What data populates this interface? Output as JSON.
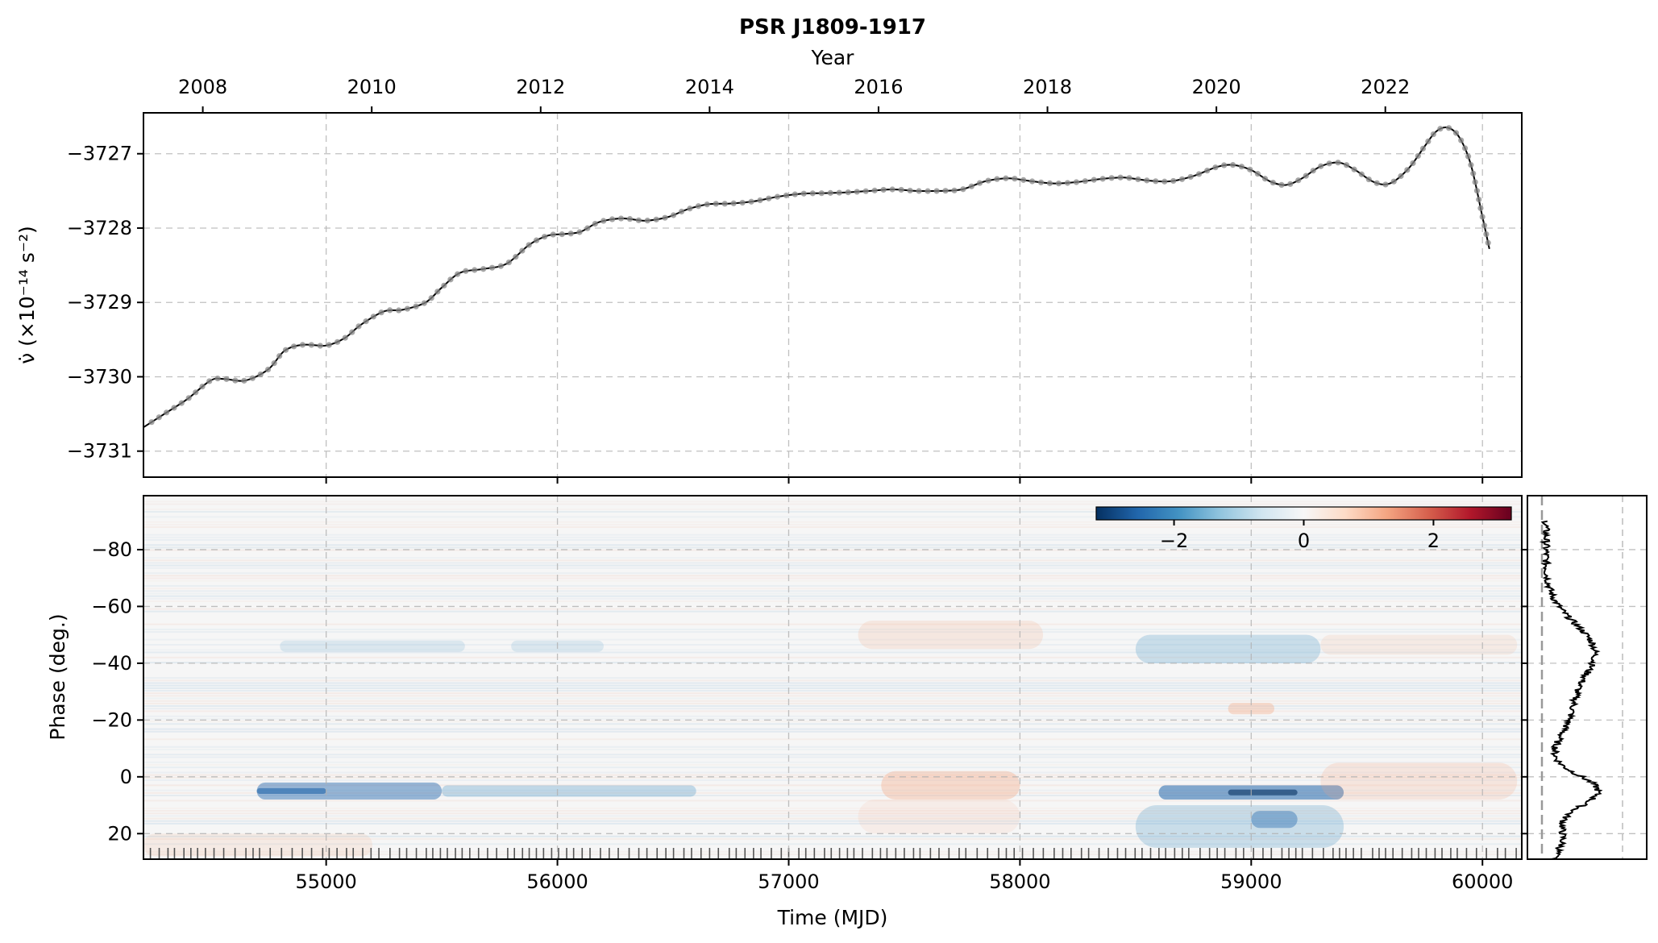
{
  "chart_data": [
    {
      "type": "line",
      "title": "PSR J1809-1917",
      "top_axis_label": "Year",
      "top_ticks": [
        "2008",
        "2010",
        "2012",
        "2014",
        "2016",
        "2018",
        "2020",
        "2022"
      ],
      "top_tick_years": [
        2008,
        2010,
        2012,
        2014,
        2016,
        2018,
        2020,
        2022
      ],
      "ylabel": "ν̇ (×10⁻¹⁴ s⁻²)",
      "yticks": [
        -3727,
        -3728,
        -3729,
        -3730,
        -3731
      ],
      "ytick_labels": [
        "−3727",
        "−3728",
        "−3729",
        "−3730",
        "−3731"
      ],
      "xlim": [
        54210,
        60170
      ],
      "ylim": [
        -3731.35,
        -3726.45
      ],
      "grid": true,
      "series": [
        {
          "line_color": "#000000",
          "marker_color": "#888888",
          "x": [
            54210,
            54300,
            54400,
            54500,
            54560,
            54650,
            54750,
            54820,
            54900,
            55000,
            55080,
            55150,
            55250,
            55330,
            55430,
            55500,
            55580,
            55680,
            55780,
            55880,
            55960,
            56030,
            56100,
            56180,
            56280,
            56380,
            56480,
            56560,
            56650,
            56750,
            56850,
            56950,
            57050,
            57150,
            57250,
            57350,
            57450,
            57550,
            57650,
            57750,
            57850,
            57950,
            58050,
            58150,
            58250,
            58350,
            58450,
            58550,
            58650,
            58750,
            58850,
            58920,
            59000,
            59080,
            59150,
            59220,
            59300,
            59380,
            59450,
            59530,
            59600,
            59680,
            59750,
            59800,
            59850,
            59900,
            59950,
            60000,
            60030
          ],
          "y": [
            -3730.68,
            -3730.5,
            -3730.3,
            -3730.05,
            -3730.03,
            -3730.05,
            -3729.9,
            -3729.65,
            -3729.57,
            -3729.58,
            -3729.48,
            -3729.3,
            -3729.12,
            -3729.1,
            -3729.0,
            -3728.8,
            -3728.6,
            -3728.55,
            -3728.48,
            -3728.22,
            -3728.1,
            -3728.08,
            -3728.05,
            -3727.92,
            -3727.87,
            -3727.9,
            -3727.85,
            -3727.75,
            -3727.68,
            -3727.67,
            -3727.64,
            -3727.58,
            -3727.54,
            -3727.53,
            -3727.52,
            -3727.5,
            -3727.48,
            -3727.5,
            -3727.5,
            -3727.48,
            -3727.37,
            -3727.33,
            -3727.37,
            -3727.4,
            -3727.38,
            -3727.34,
            -3727.32,
            -3727.36,
            -3727.37,
            -3727.3,
            -3727.18,
            -3727.15,
            -3727.22,
            -3727.37,
            -3727.42,
            -3727.33,
            -3727.17,
            -3727.12,
            -3727.22,
            -3727.38,
            -3727.4,
            -3727.2,
            -3726.9,
            -3726.7,
            -3726.65,
            -3726.78,
            -3727.15,
            -3727.85,
            -3728.28
          ]
        }
      ]
    },
    {
      "type": "heatmap",
      "xlabel": "Time (MJD)",
      "ylabel": "Phase (deg.)",
      "xticks": [
        55000,
        56000,
        57000,
        58000,
        59000,
        60000
      ],
      "xtick_labels": [
        "55000",
        "56000",
        "57000",
        "58000",
        "59000",
        "60000"
      ],
      "yticks": [
        -80,
        -60,
        -40,
        -20,
        0,
        20
      ],
      "ytick_labels": [
        "−80",
        "−60",
        "−40",
        "−20",
        "0",
        "20"
      ],
      "xlim": [
        54210,
        60170
      ],
      "ylim_top_to_bottom": [
        -99,
        29
      ],
      "colormap": "RdBu_r",
      "colorbar": {
        "range": [
          -3.2,
          3.2
        ],
        "ticks": [
          -2,
          0,
          2
        ],
        "tick_labels": [
          "−2",
          "0",
          "2"
        ],
        "placement": "top-right inside"
      },
      "colors": {
        "negative": "#053061",
        "zero": "#f7f7f7",
        "positive": "#67001f"
      }
    },
    {
      "type": "line",
      "description_role": "side profile",
      "line_color": "#000000",
      "ylim_top_to_bottom": [
        -99,
        29
      ]
    }
  ]
}
